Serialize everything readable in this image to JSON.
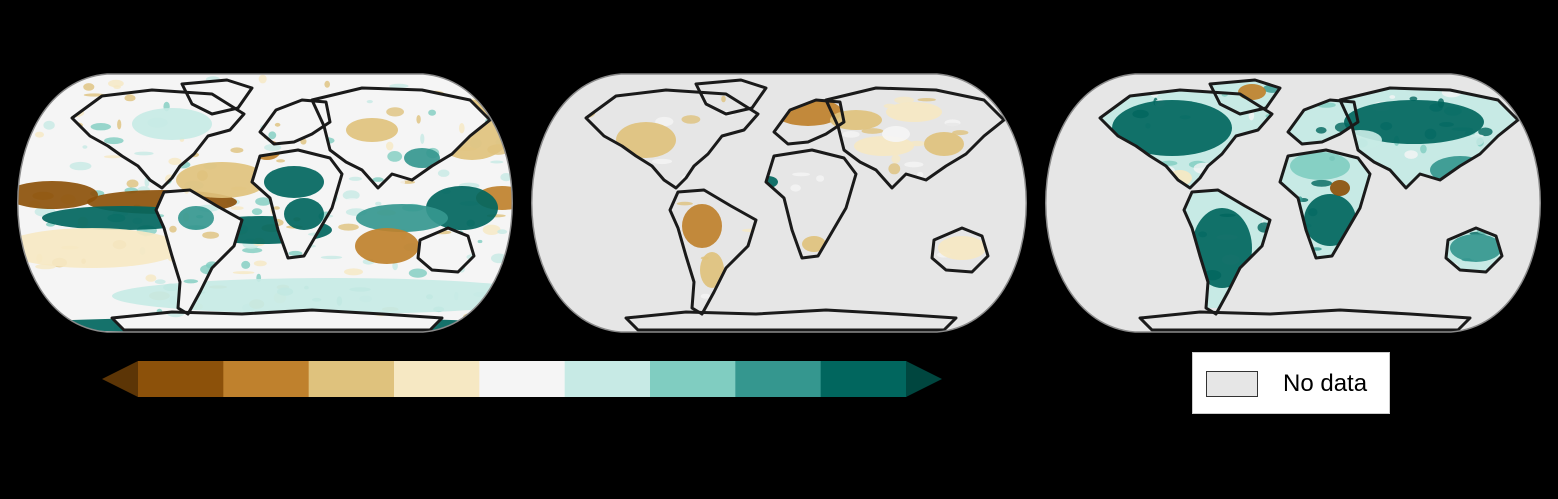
{
  "colors": {
    "background": "#000000",
    "no_data": "#e6e6e6",
    "coast": "#1a1a1a"
  },
  "colorbar": {
    "bins": [
      "#8c510a",
      "#bf812d",
      "#dfc27d",
      "#f6e8c3",
      "#f5f5f5",
      "#c7eae5",
      "#80cdc1",
      "#35978f",
      "#01665e"
    ],
    "extend_low": "#5c3506",
    "extend_high": "#00463f"
  },
  "legend": {
    "no_data_label": "No data",
    "no_data_color": "#e6e6e6"
  },
  "maps": [
    {
      "panel": 1,
      "coverage": "global",
      "pattern": "mixed"
    },
    {
      "panel": 2,
      "coverage": "land-partial",
      "pattern": "dry"
    },
    {
      "panel": 3,
      "coverage": "land",
      "pattern": "wet"
    }
  ]
}
